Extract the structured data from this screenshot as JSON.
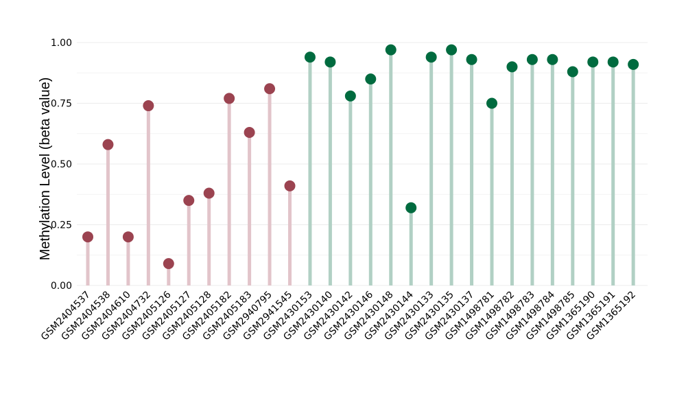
{
  "chart_data": {
    "type": "lollipop",
    "ylabel": "Methylation Level (beta value)",
    "xlabel": "",
    "ylim": [
      0,
      1
    ],
    "yticks": [
      "0.00",
      "0.25",
      "0.50",
      "0.75",
      "1.00"
    ],
    "grid": true,
    "colors": {
      "group_a_point": "#9b4350",
      "group_a_stem": "#e2c4ca",
      "group_b_point": "#006b3f",
      "group_b_stem": "#b1d0c4"
    },
    "categories": [
      "GSM2404537",
      "GSM2404538",
      "GSM2404610",
      "GSM2404732",
      "GSM2405126",
      "GSM2405127",
      "GSM2405128",
      "GSM2405182",
      "GSM2405183",
      "GSM2940795",
      "GSM2941545",
      "GSM2430153",
      "GSM2430140",
      "GSM2430142",
      "GSM2430146",
      "GSM2430148",
      "GSM2430144",
      "GSM2430133",
      "GSM2430135",
      "GSM2430137",
      "GSM1498781",
      "GSM1498782",
      "GSM1498783",
      "GSM1498784",
      "GSM1498785",
      "GSM1365190",
      "GSM1365191",
      "GSM1365192"
    ],
    "values": [
      0.2,
      0.58,
      0.2,
      0.74,
      0.09,
      0.35,
      0.38,
      0.77,
      0.63,
      0.81,
      0.41,
      0.94,
      0.92,
      0.78,
      0.85,
      0.97,
      0.32,
      0.94,
      0.97,
      0.93,
      0.75,
      0.9,
      0.93,
      0.93,
      0.88,
      0.92,
      0.92,
      0.91
    ],
    "groups": [
      "a",
      "a",
      "a",
      "a",
      "a",
      "a",
      "a",
      "a",
      "a",
      "a",
      "a",
      "b",
      "b",
      "b",
      "b",
      "b",
      "b",
      "b",
      "b",
      "b",
      "b",
      "b",
      "b",
      "b",
      "b",
      "b",
      "b",
      "b"
    ]
  }
}
